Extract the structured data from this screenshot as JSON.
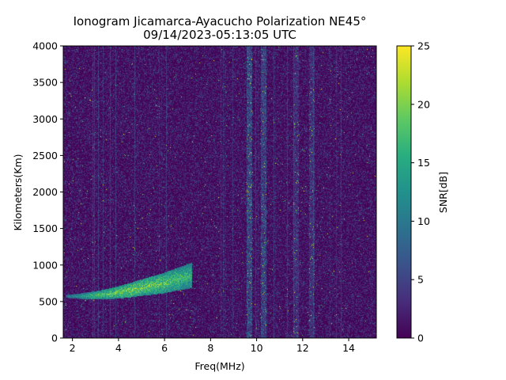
{
  "chart_data": {
    "type": "heatmap",
    "title": "Ionogram Jicamarca-Ayacucho Polarization NE45°",
    "subtitle": "09/14/2023-05:13:05 UTC",
    "xlabel": "Freq(MHz)",
    "ylabel": "Kilometers(Km)",
    "xlim": [
      1.6,
      15.2
    ],
    "ylim": [
      0,
      4000
    ],
    "x_ticks": [
      2,
      4,
      6,
      8,
      10,
      12,
      14
    ],
    "x_tick_labels": [
      "2",
      "4",
      "6",
      "8",
      "10",
      "12",
      "14"
    ],
    "y_ticks": [
      0,
      500,
      1000,
      1500,
      2000,
      2500,
      3000,
      3500,
      4000
    ],
    "y_tick_labels": [
      "0",
      "500",
      "1000",
      "1500",
      "2000",
      "2500",
      "3000",
      "3500",
      "4000"
    ],
    "grid": false,
    "colormap": "viridis",
    "colorbar": {
      "label": "SNR[dB]",
      "range": [
        0,
        25
      ],
      "ticks": [
        0,
        5,
        10,
        15,
        20,
        25
      ],
      "tick_labels": [
        "0",
        "5",
        "10",
        "15",
        "20",
        "25"
      ]
    },
    "background_snr_db": 0,
    "features": [
      {
        "kind": "trace",
        "points": [
          {
            "x": 1.7,
            "y": 570,
            "snr": 12
          },
          {
            "x": 2.5,
            "y": 575,
            "snr": 18
          },
          {
            "x": 3.0,
            "y": 585,
            "snr": 22
          },
          {
            "x": 3.5,
            "y": 600,
            "snr": 23
          },
          {
            "x": 4.0,
            "y": 625,
            "snr": 24
          },
          {
            "x": 4.5,
            "y": 655,
            "snr": 25
          },
          {
            "x": 5.0,
            "y": 690,
            "snr": 25
          },
          {
            "x": 5.5,
            "y": 720,
            "snr": 24
          },
          {
            "x": 6.0,
            "y": 755,
            "snr": 24
          },
          {
            "x": 6.5,
            "y": 800,
            "snr": 22
          },
          {
            "x": 7.0,
            "y": 840,
            "snr": 21
          },
          {
            "x": 7.2,
            "y": 860,
            "snr": 20
          }
        ]
      },
      {
        "kind": "noise-band",
        "x": 9.7,
        "snr": 6
      },
      {
        "kind": "noise-band",
        "x": 10.3,
        "snr": 5
      },
      {
        "kind": "noise-band",
        "x": 11.7,
        "snr": 3
      },
      {
        "kind": "noise-band",
        "x": 12.4,
        "snr": 3
      }
    ]
  }
}
